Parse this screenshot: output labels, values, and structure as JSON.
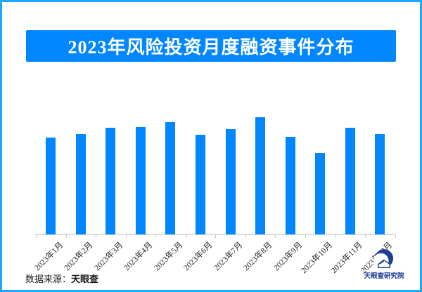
{
  "header": {
    "title": "2023年风险投资月度融资事件分布"
  },
  "chart_data": {
    "type": "bar",
    "title": "2023年风险投资月度融资事件分布",
    "categories": [
      "2023年1月",
      "2023年2月",
      "2023年3月",
      "2023年4月",
      "2023年5月",
      "2023年6月",
      "2023年7月",
      "2023年8月",
      "2023年9月",
      "2023年10月",
      "2023年11月",
      "2023年12月"
    ],
    "values": [
      138,
      143,
      152,
      153,
      160,
      142,
      150,
      167,
      139,
      116,
      152,
      143
    ],
    "values_note": "y-axis is unlabeled; values are relative magnitudes estimated from bar heights (max month = August, min month = October)",
    "xlabel": "",
    "ylabel": "",
    "ylim": [
      0,
      180
    ],
    "grid": false,
    "legend": false,
    "x_tick_rotation_deg": -45
  },
  "footer": {
    "source_label": "数据来源：",
    "source_name": "天眼查"
  },
  "logo": {
    "label": "天眼查研究院",
    "icon": "tianyancha-swirl-eye-logo"
  },
  "colors": {
    "accent": "#0086ff",
    "border": "#1ea7ff",
    "axis": "#dcdcdc",
    "tick": "#c9c9c9",
    "label_text": "#262626",
    "footer_text": "#1a1a1a",
    "logo_navy": "#1d3e94",
    "title_text": "#ffffff",
    "background": "#ffffff"
  }
}
